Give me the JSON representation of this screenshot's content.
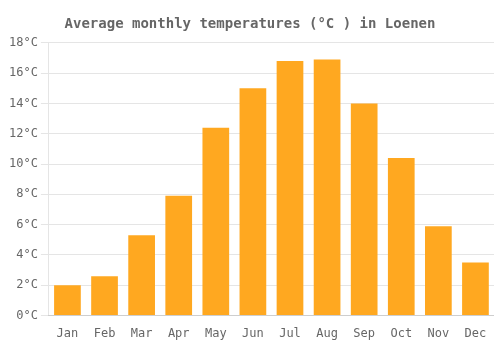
{
  "chart_data": {
    "type": "bar",
    "title": "Average monthly temperatures (°C ) in Loenen",
    "categories": [
      "Jan",
      "Feb",
      "Mar",
      "Apr",
      "May",
      "Jun",
      "Jul",
      "Aug",
      "Sep",
      "Oct",
      "Nov",
      "Dec"
    ],
    "values": [
      2.0,
      2.6,
      5.3,
      7.9,
      12.4,
      15.0,
      16.8,
      16.9,
      14.0,
      10.4,
      5.9,
      3.5
    ],
    "color": "#FFA820",
    "ylim": [
      0,
      18
    ],
    "yticks": [
      {
        "value": 0,
        "label": "0°C"
      },
      {
        "value": 2,
        "label": "2°C"
      },
      {
        "value": 4,
        "label": "4°C"
      },
      {
        "value": 6,
        "label": "6°C"
      },
      {
        "value": 8,
        "label": "8°C"
      },
      {
        "value": 10,
        "label": "10°C"
      },
      {
        "value": 12,
        "label": "12°C"
      },
      {
        "value": 14,
        "label": "14°C"
      },
      {
        "value": 16,
        "label": "16°C"
      },
      {
        "value": 18,
        "label": "18°C"
      }
    ],
    "grid": true
  }
}
